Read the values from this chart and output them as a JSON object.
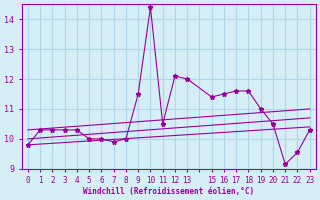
{
  "background_color": "#d6eef5",
  "grid_color": "#b0d8e8",
  "line_color": "#990099",
  "xlabel": "Windchill (Refroidissement éolien,°C)",
  "xlim": [
    -0.5,
    23.5
  ],
  "ylim": [
    9,
    14.5
  ],
  "yticks": [
    9,
    10,
    11,
    12,
    13,
    14
  ],
  "xticks": [
    0,
    1,
    2,
    3,
    4,
    5,
    6,
    7,
    8,
    9,
    10,
    11,
    12,
    13,
    14,
    15,
    16,
    17,
    18,
    19,
    20,
    21,
    22,
    23
  ],
  "xtick_labels": [
    "0",
    "1",
    "2",
    "3",
    "4",
    "5",
    "6",
    "7",
    "8",
    "9",
    "10",
    "11",
    "12",
    "13",
    "",
    "15",
    "16",
    "17",
    "18",
    "19",
    "20",
    "21",
    "22",
    "23"
  ],
  "series": [
    {
      "x": [
        0,
        1,
        2,
        3,
        4,
        5,
        6,
        7,
        8,
        9,
        10,
        11,
        12,
        13,
        15,
        16,
        17,
        18,
        19,
        20,
        21,
        22,
        23
      ],
      "y": [
        9.8,
        10.3,
        10.3,
        10.3,
        10.3,
        10.0,
        10.0,
        9.9,
        10.0,
        11.5,
        14.4,
        10.5,
        12.1,
        12.0,
        11.4,
        11.5,
        11.6,
        11.6,
        11.0,
        10.5,
        9.15,
        9.55,
        10.3
      ],
      "marker": "*",
      "style": "-"
    },
    {
      "x": [
        0,
        23
      ],
      "y": [
        10.3,
        11.0
      ],
      "marker": null,
      "style": "-"
    },
    {
      "x": [
        0,
        23
      ],
      "y": [
        9.8,
        10.4
      ],
      "marker": null,
      "style": "-"
    },
    {
      "x": [
        0,
        23
      ],
      "y": [
        10.0,
        10.7
      ],
      "marker": null,
      "style": "-"
    }
  ]
}
